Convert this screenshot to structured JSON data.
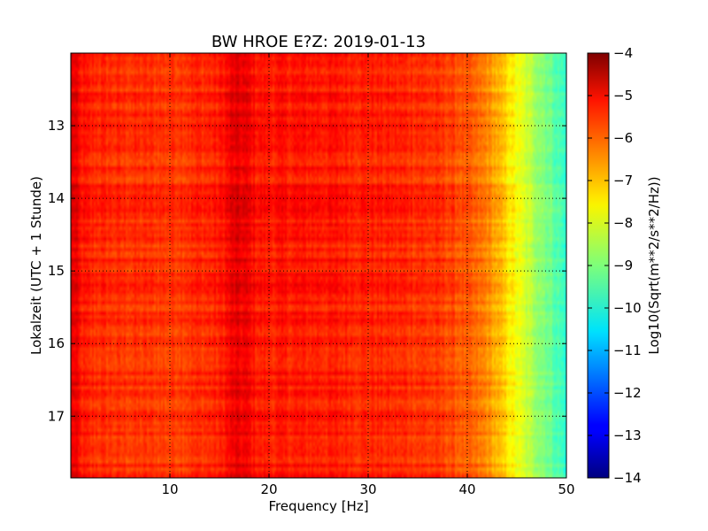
{
  "chart_data": {
    "type": "heatmap",
    "title": "BW HROE E?Z: 2019-01-13",
    "xlabel": "Frequency [Hz]",
    "ylabel": "Lokalzeit (UTC + 1 Stunde)",
    "xlim": [
      0,
      50
    ],
    "ylim": [
      12.0,
      17.85
    ],
    "x_ticks": [
      10,
      20,
      30,
      40,
      50
    ],
    "y_ticks": [
      13,
      14,
      15,
      16,
      17
    ],
    "y_axis_inverted": true,
    "grid": true,
    "colorbar": {
      "label": "Log10(Sqrt(m**2/s**2/Hz))",
      "range": [
        -14,
        -4
      ],
      "ticks": [
        -14,
        -13,
        -12,
        -11,
        -10,
        -9,
        -8,
        -7,
        -6,
        -5,
        -4
      ],
      "colormap": "jet"
    },
    "spectral_profile": {
      "frequency_hz": [
        0,
        0.5,
        1,
        2,
        5,
        10,
        15,
        16.5,
        17.5,
        19,
        25,
        30,
        35,
        38,
        40,
        42,
        44,
        46,
        48,
        50
      ],
      "log10_amplitude": [
        -4.9,
        -5.1,
        -5.45,
        -5.6,
        -5.7,
        -5.75,
        -5.55,
        -5.05,
        -5.1,
        -5.45,
        -5.45,
        -5.55,
        -5.65,
        -5.85,
        -6.15,
        -6.55,
        -7.4,
        -8.3,
        -9.0,
        -9.8
      ]
    }
  },
  "colors": {
    "background": "#ffffff",
    "axis": "#000000"
  }
}
